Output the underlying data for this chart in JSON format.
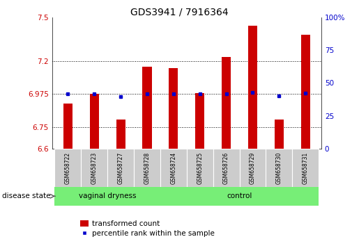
{
  "title": "GDS3941 / 7916364",
  "samples": [
    "GSM658722",
    "GSM658723",
    "GSM658727",
    "GSM658728",
    "GSM658724",
    "GSM658725",
    "GSM658726",
    "GSM658729",
    "GSM658730",
    "GSM658731"
  ],
  "bar_values": [
    6.91,
    6.975,
    6.8,
    7.16,
    7.15,
    6.98,
    7.23,
    7.44,
    6.8,
    7.38
  ],
  "blue_dot_values": [
    6.975,
    6.975,
    6.955,
    6.977,
    6.977,
    6.975,
    6.978,
    6.985,
    6.96,
    6.98
  ],
  "bar_bottom": 6.6,
  "ylim_left": [
    6.6,
    7.5
  ],
  "ylim_right": [
    0,
    100
  ],
  "yticks_left": [
    6.6,
    6.75,
    6.975,
    7.2,
    7.5
  ],
  "yticks_right": [
    0,
    25,
    50,
    75,
    100
  ],
  "ytick_labels_left": [
    "6.6",
    "6.75",
    "6.975",
    "7.2",
    "7.5"
  ],
  "ytick_labels_right": [
    "0",
    "25",
    "50",
    "75",
    "100%"
  ],
  "hlines": [
    6.75,
    6.975,
    7.2
  ],
  "bar_color": "#cc0000",
  "blue_dot_color": "#0000cc",
  "group1_count": 4,
  "group2_count": 6,
  "group1_label": "vaginal dryness",
  "group2_label": "control",
  "group_bg_color": "#77ee77",
  "sample_bg_color": "#cccccc",
  "disease_state_label": "disease state",
  "legend_bar_label": "transformed count",
  "legend_dot_label": "percentile rank within the sample",
  "title_fontsize": 10,
  "axis_color_left": "#cc0000",
  "axis_color_right": "#0000cc",
  "bar_width": 0.35
}
